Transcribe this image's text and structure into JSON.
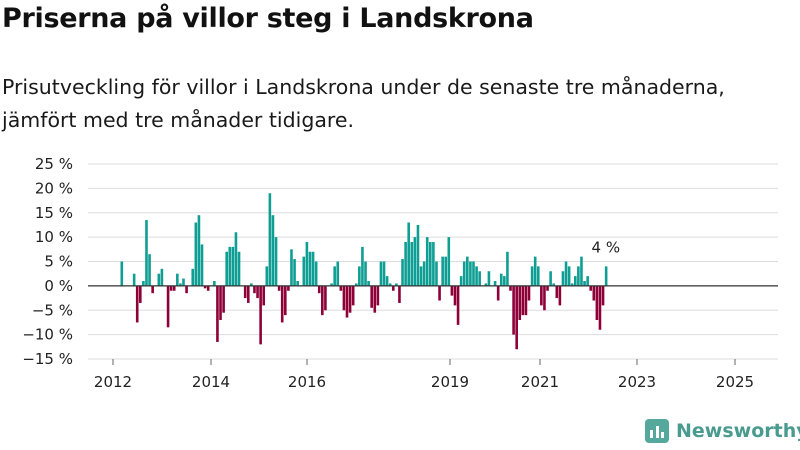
{
  "title": "Priserna på villor steg i Landskrona",
  "subtitle": "Prisutveckling för villor i Landskrona under de senaste tre månaderna, jämfört med tre månader tidigare.",
  "brand": {
    "name": "Newsworthy",
    "icon": "newsworthy-logo-icon"
  },
  "colors": {
    "positive": "#0f9e93",
    "negative": "#8e0038",
    "grid": "#dddddd",
    "axis": "#333333"
  },
  "chart_data": {
    "type": "bar",
    "title": "Priserna på villor steg i Landskrona",
    "ylabel": "",
    "xlabel": "",
    "ylim": [
      -15,
      25
    ],
    "yticks": [
      25,
      20,
      15,
      10,
      5,
      0,
      -5,
      -10,
      -15
    ],
    "ytick_labels": [
      "25 %",
      "20 %",
      "15 %",
      "10 %",
      "5 %",
      "0 %",
      "−5 %",
      "−10 %",
      "−15 %"
    ],
    "xtick_labels": [
      "2012",
      "2014",
      "2016",
      "2019",
      "2021",
      "2023",
      "2025"
    ],
    "grid": true,
    "annotation": "4 %",
    "series": [
      {
        "values": [
          5,
          0,
          0,
          0,
          2.5,
          -7.5,
          -3.5,
          1,
          13.5,
          6.5,
          -1.5,
          0,
          2.5,
          3.5,
          0,
          -8.5,
          -1,
          -1,
          2.5,
          0.5,
          1.5,
          -1.5,
          0,
          3.5,
          13,
          14.5,
          8.5,
          -0.5,
          -1,
          0,
          1,
          -11.5,
          -7,
          -5.5,
          7,
          8,
          8,
          11,
          7,
          0,
          -2.5,
          -3.5,
          0.5,
          -1.5,
          -2.5,
          -12,
          -4,
          4,
          19,
          14.5,
          10,
          -1,
          -7.5,
          -6,
          -1,
          7.5,
          5.5,
          1,
          0,
          6,
          9,
          7,
          7,
          5,
          -1.5,
          -6,
          -5,
          0,
          0.5,
          4,
          5,
          -1,
          -5,
          -6.5,
          -5.5,
          -4,
          0.5,
          4,
          8,
          5,
          1,
          -4.5,
          -5.5,
          -4,
          5,
          5,
          2,
          0.5,
          -1,
          0.5,
          -3.5,
          5.5,
          9,
          13,
          9,
          10,
          12.5,
          4,
          5,
          10,
          9,
          9,
          5,
          -3,
          6,
          6,
          10,
          -2,
          -4,
          -8,
          2,
          5,
          6,
          5,
          5,
          4,
          3,
          0,
          0.5,
          3,
          0,
          1,
          -3,
          2.5,
          2,
          7,
          -1,
          -10,
          -13,
          -7,
          -6,
          -6,
          -3,
          4,
          6,
          4,
          -4,
          -5,
          -1,
          3,
          0.5,
          -2.5,
          -4,
          3,
          5,
          4,
          0.5,
          2,
          4,
          6,
          1,
          2,
          -1,
          -3,
          -7,
          -9,
          -4,
          4
        ]
      }
    ]
  }
}
